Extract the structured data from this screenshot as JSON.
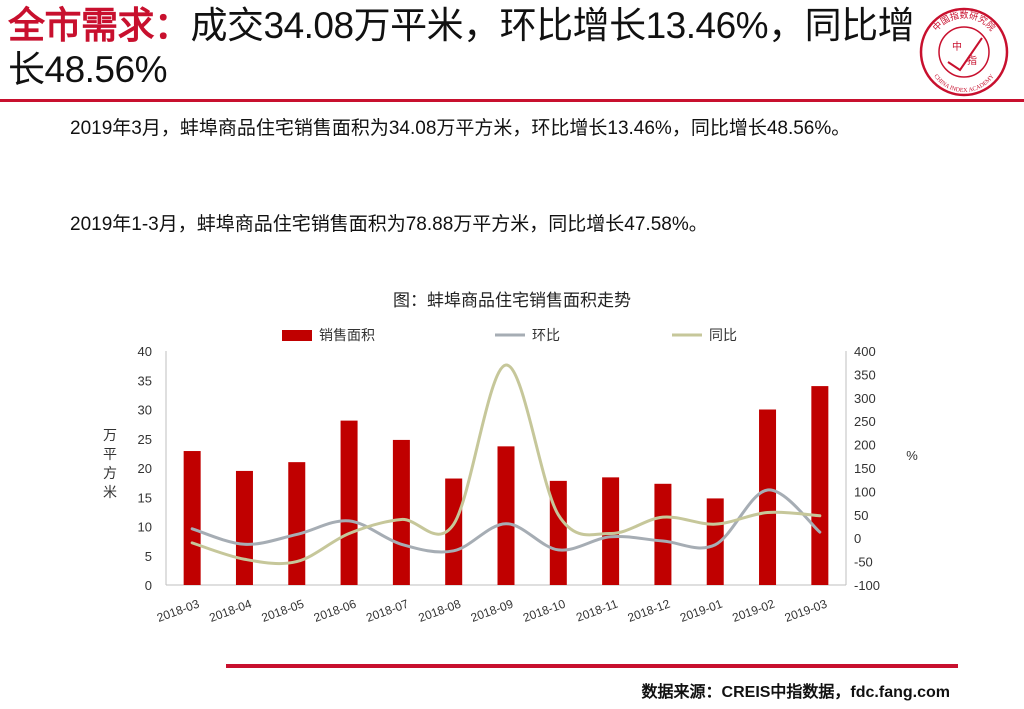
{
  "header": {
    "title_prefix": "全市需求：",
    "title_rest": "成交34.08万平米，环比增长13.46%，同比增长48.56%"
  },
  "logo": {
    "text_top": "中国指数研究院",
    "text_bottom": "CHINA INDEX ACADEMY",
    "center_1": "中",
    "center_2": "指",
    "color": "#c8102e"
  },
  "body": {
    "paragraph1": "2019年3月，蚌埠商品住宅销售面积为34.08万平方米，环比增长13.46%，同比增长48.56%。",
    "paragraph2": "2019年1-3月，蚌埠商品住宅销售面积为78.88万平方米，同比增长47.58%。"
  },
  "chart_data": {
    "type": "bar",
    "title": "图：蚌埠商品住宅销售面积走势",
    "categories": [
      "2018-03",
      "2018-04",
      "2018-05",
      "2018-06",
      "2018-07",
      "2018-08",
      "2018-09",
      "2018-10",
      "2018-11",
      "2018-12",
      "2019-01",
      "2019-02",
      "2019-03"
    ],
    "series": [
      {
        "name": "销售面积",
        "kind": "bar",
        "axis": "left",
        "color": "#c00000",
        "values": [
          22.9,
          19.5,
          21.0,
          28.1,
          24.8,
          18.2,
          23.7,
          17.8,
          18.4,
          17.3,
          14.8,
          30.0,
          34.0
        ]
      },
      {
        "name": "环比",
        "kind": "line",
        "axis": "right",
        "color": "#a6adb4",
        "values": [
          20,
          -13,
          8,
          37,
          -13,
          -27,
          31,
          -25,
          3,
          -6,
          -14,
          103,
          13
        ]
      },
      {
        "name": "同比",
        "kind": "line",
        "axis": "right",
        "color": "#c6c79a",
        "values": [
          -10,
          -45,
          -50,
          10,
          40,
          30,
          370,
          50,
          10,
          45,
          30,
          55,
          48
        ]
      }
    ],
    "ylabel": "万平方米",
    "y2label": "%",
    "ylim": [
      0,
      40
    ],
    "yticks": [
      "0",
      "5",
      "10",
      "15",
      "20",
      "25",
      "30",
      "35",
      "40"
    ],
    "y2lim": [
      -100,
      400
    ],
    "y2ticks": [
      "-100",
      "-50",
      "0",
      "50",
      "100",
      "150",
      "200",
      "250",
      "300",
      "350",
      "400"
    ],
    "grid": false,
    "legend": "top"
  },
  "footer": {
    "source": "数据来源：CREIS中指数据，fdc.fang.com"
  }
}
